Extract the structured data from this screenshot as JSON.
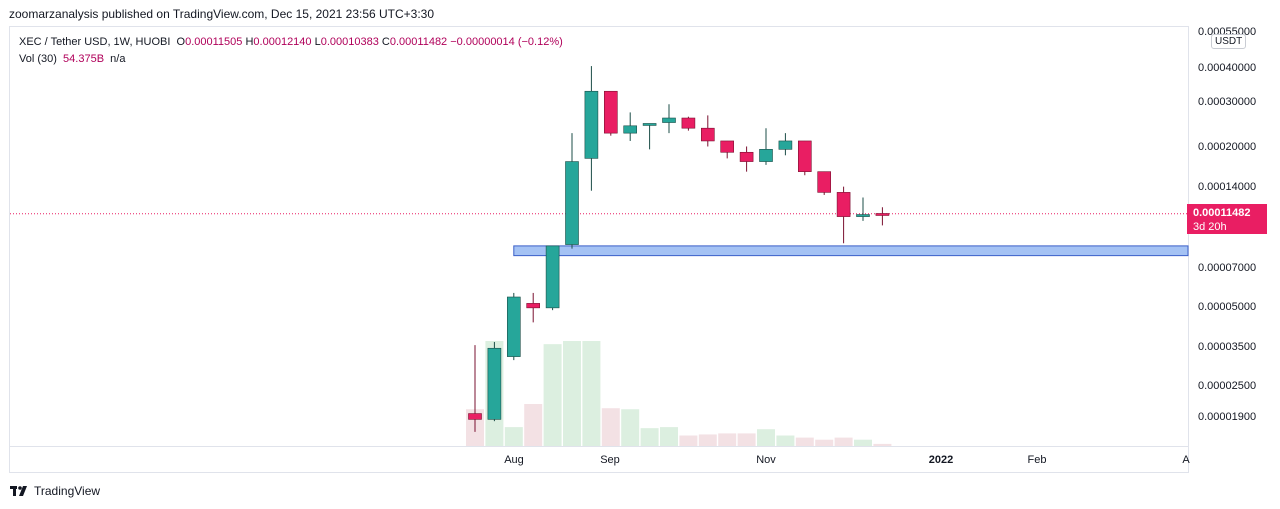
{
  "header": {
    "published": "zoomarzanalysis published on TradingView.com, Dec 15, 2021 23:56 UTC+3:30"
  },
  "legend": {
    "symbol": "XEC / Tether USD, 1W, HUOBI",
    "o_label": "O",
    "o": "0.00011505",
    "h_label": "H",
    "h": "0.00012140",
    "l_label": "L",
    "l": "0.00010383",
    "c_label": "C",
    "c": "0.00011482",
    "change": "−0.00000014 (−0.12%)",
    "vol_label": "Vol (30)",
    "vol": "54.375B",
    "vol_extra": "n/a"
  },
  "price_axis": {
    "unit": "USDT",
    "ticks": [
      "0.00055000",
      "0.00040000",
      "0.00030000",
      "0.00020000",
      "0.00014000",
      "0.00007000",
      "0.00005000",
      "0.00003500",
      "0.00002500",
      "0.00001900"
    ],
    "last_price": "0.00011482",
    "countdown": "3d 20h"
  },
  "time_axis": {
    "ticks": [
      "Aug",
      "Sep",
      "Nov",
      "2022",
      "Feb",
      "A"
    ]
  },
  "footer": {
    "brand": "TradingView"
  },
  "colors": {
    "up": "#26a69a",
    "down": "#e91e63",
    "zone": "#a4c2f4",
    "zone_border": "#3a5fc8"
  },
  "chart_data": {
    "type": "candlestick",
    "title": "XEC / Tether USD, 1W, HUOBI",
    "scale": "log",
    "ylim": [
      1.55e-05,
      0.00055
    ],
    "series": [
      {
        "o": 2.05e-05,
        "h": 3.7e-05,
        "l": 1.75e-05,
        "c": 1.95e-05,
        "v": 0.35
      },
      {
        "o": 1.95e-05,
        "h": 3.8e-05,
        "l": 1.92e-05,
        "c": 3.6e-05,
        "v": 1.0
      },
      {
        "o": 3.35e-05,
        "h": 5.8e-05,
        "l": 3.25e-05,
        "c": 5.6e-05,
        "v": 0.18
      },
      {
        "o": 5.3e-05,
        "h": 5.8e-05,
        "l": 4.5e-05,
        "c": 5.1e-05,
        "v": 0.4
      },
      {
        "o": 5.1e-05,
        "h": 8.7e-05,
        "l": 5e-05,
        "c": 8.7e-05,
        "v": 0.97
      },
      {
        "o": 8.8e-05,
        "h": 0.00023,
        "l": 8.5e-05,
        "c": 0.00018,
        "v": 1.0
      },
      {
        "o": 0.000185,
        "h": 0.00041,
        "l": 0.00014,
        "c": 0.00033,
        "v": 1.0
      },
      {
        "o": 0.00033,
        "h": 0.00033,
        "l": 0.000225,
        "c": 0.00023,
        "v": 0.36
      },
      {
        "o": 0.00023,
        "h": 0.000275,
        "l": 0.000215,
        "c": 0.000245,
        "v": 0.35
      },
      {
        "o": 0.000248,
        "h": 0.00025,
        "l": 0.0002,
        "c": 0.00025,
        "v": 0.17
      },
      {
        "o": 0.000252,
        "h": 0.000295,
        "l": 0.00023,
        "c": 0.000262,
        "v": 0.18
      },
      {
        "o": 0.000262,
        "h": 0.000265,
        "l": 0.000235,
        "c": 0.00024,
        "v": 0.1
      },
      {
        "o": 0.00024,
        "h": 0.000268,
        "l": 0.000205,
        "c": 0.000215,
        "v": 0.11
      },
      {
        "o": 0.000215,
        "h": 0.000215,
        "l": 0.000185,
        "c": 0.000195,
        "v": 0.12
      },
      {
        "o": 0.000195,
        "h": 0.000205,
        "l": 0.000165,
        "c": 0.00018,
        "v": 0.12
      },
      {
        "o": 0.00018,
        "h": 0.00024,
        "l": 0.000175,
        "c": 0.0002,
        "v": 0.16
      },
      {
        "o": 0.0002,
        "h": 0.00023,
        "l": 0.00019,
        "c": 0.000215,
        "v": 0.1
      },
      {
        "o": 0.000215,
        "h": 0.000215,
        "l": 0.00016,
        "c": 0.000165,
        "v": 0.08
      },
      {
        "o": 0.000165,
        "h": 0.000165,
        "l": 0.000135,
        "c": 0.000138,
        "v": 0.06
      },
      {
        "o": 0.000138,
        "h": 0.000145,
        "l": 8.9e-05,
        "c": 0.000112,
        "v": 0.08
      },
      {
        "o": 0.000112,
        "h": 0.000132,
        "l": 0.000108,
        "c": 0.000114,
        "v": 0.06
      },
      {
        "o": 0.00011505,
        "h": 0.0001214,
        "l": 0.00010383,
        "c": 0.00011482,
        "v": 0.02
      }
    ],
    "support_zone": {
      "from": 8e-05,
      "to": 8.7e-05
    },
    "last_price": 0.00011482,
    "xticks": [
      "Aug",
      "Sep",
      "Nov",
      "2022",
      "Feb",
      "A"
    ]
  }
}
